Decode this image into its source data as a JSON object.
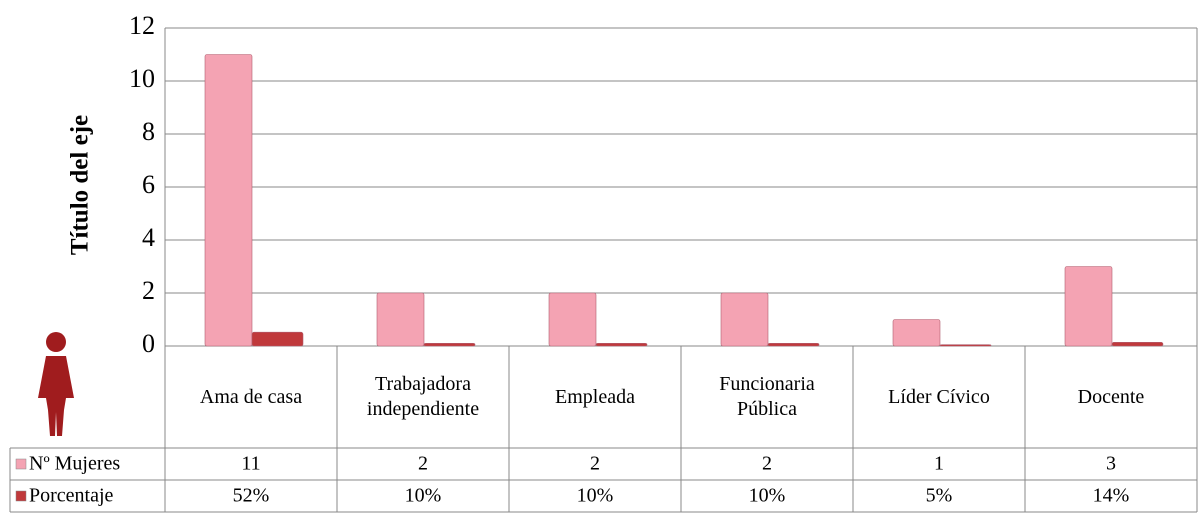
{
  "chart_data": {
    "type": "bar",
    "y_axis_title": "Título del eje",
    "categories": [
      "Ama de casa",
      "Trabajadora independiente",
      "Empleada",
      "Funcionaria Pública",
      "Líder Cívico",
      "Docente"
    ],
    "series": [
      {
        "name": "Nº Mujeres",
        "color": "#f4a3b3",
        "values": [
          11,
          2,
          2,
          2,
          1,
          3
        ]
      },
      {
        "name": "Porcentaje",
        "color": "#c0393b",
        "values": [
          0.52,
          0.1,
          0.1,
          0.1,
          0.05,
          0.14
        ],
        "value_labels": [
          "52%",
          "10%",
          "10%",
          "10%",
          "5%",
          "14%"
        ]
      }
    ],
    "ylim": [
      0,
      12
    ],
    "yticks": [
      0,
      2,
      4,
      6,
      8,
      10,
      12
    ],
    "grid": true
  }
}
